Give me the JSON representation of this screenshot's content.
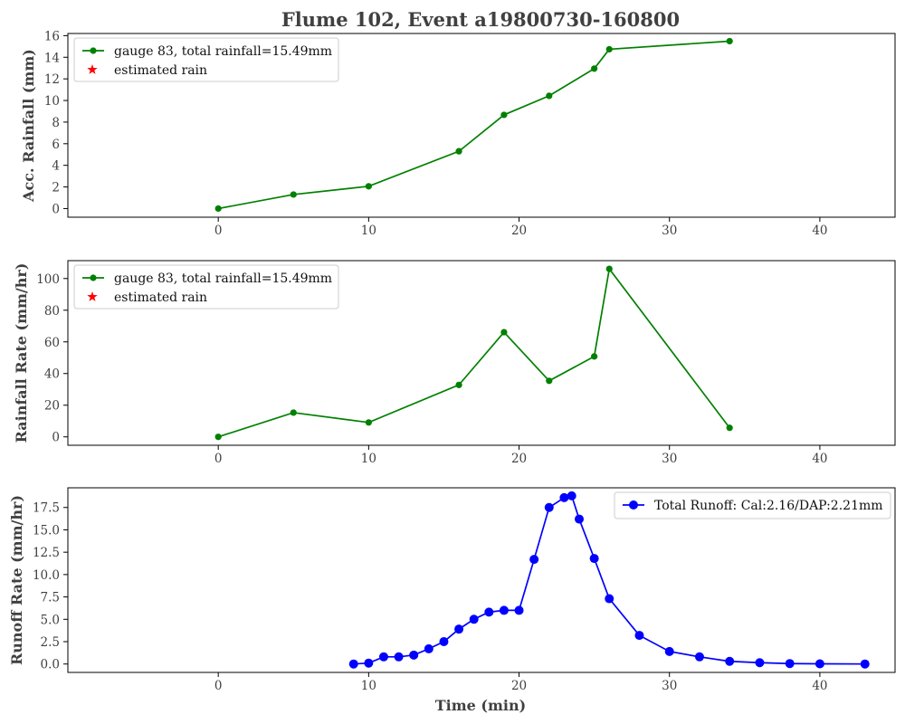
{
  "chart_data": [
    {
      "type": "line",
      "title": "Flume 102, Event a19800730-160800",
      "xlabel": "",
      "ylabel": "Acc. Rainfall (mm)",
      "xlim": [
        -10,
        45
      ],
      "ylim": [
        -0.8,
        16.2
      ],
      "xticks": [
        0,
        10,
        20,
        30,
        40
      ],
      "yticks": [
        0,
        2,
        4,
        6,
        8,
        10,
        12,
        14,
        16
      ],
      "legend_position": "upper-left",
      "series": [
        {
          "name": "gauge 83, total rainfall=15.49mm",
          "color": "#008000",
          "marker": "circle",
          "x": [
            0,
            5,
            10,
            16,
            19,
            22,
            25,
            26,
            34
          ],
          "y": [
            0,
            1.3,
            2.06,
            5.3,
            8.67,
            10.43,
            12.95,
            14.74,
            15.49
          ]
        },
        {
          "name": "estimated rain",
          "color": "#ff0000",
          "marker": "star",
          "x": [],
          "y": []
        }
      ]
    },
    {
      "type": "line",
      "title": "",
      "xlabel": "",
      "ylabel": "Rainfall Rate (mm/hr)",
      "xlim": [
        -10,
        45
      ],
      "ylim": [
        -5.3,
        111.3
      ],
      "xticks": [
        0,
        10,
        20,
        30,
        40
      ],
      "yticks": [
        0,
        20,
        40,
        60,
        80,
        100
      ],
      "legend_position": "upper-left",
      "series": [
        {
          "name": "gauge 83, total rainfall=15.49mm",
          "color": "#008000",
          "marker": "circle",
          "x": [
            0,
            5,
            10,
            16,
            19,
            22,
            25,
            26,
            34
          ],
          "y": [
            0,
            15.3,
            9.1,
            32.8,
            66.1,
            35.4,
            50.8,
            106.1,
            5.7
          ]
        },
        {
          "name": "estimated rain",
          "color": "#ff0000",
          "marker": "star",
          "x": [],
          "y": []
        }
      ]
    },
    {
      "type": "line",
      "title": "",
      "xlabel": "Time (min)",
      "ylabel": "Runoff Rate (mm/hr)",
      "xlim": [
        -10,
        45
      ],
      "ylim": [
        -0.94,
        19.7
      ],
      "xticks": [
        0,
        10,
        20,
        30,
        40
      ],
      "yticks": [
        0.0,
        2.5,
        5.0,
        7.5,
        10.0,
        12.5,
        15.0,
        17.5
      ],
      "legend_position": "upper-right",
      "series": [
        {
          "name": "Total Runoff: Cal:2.16/DAP:2.21mm",
          "color": "#0000ff",
          "marker": "circle",
          "x": [
            9,
            10,
            11,
            12,
            13,
            14,
            15,
            16,
            17,
            18,
            19,
            20,
            21,
            22,
            23,
            23.5,
            24,
            25,
            26,
            28,
            30,
            32,
            34,
            36,
            38,
            40,
            43
          ],
          "y": [
            0.0,
            0.1,
            0.8,
            0.8,
            1.0,
            1.7,
            2.5,
            3.9,
            5.0,
            5.8,
            6.0,
            6.0,
            11.7,
            17.5,
            18.6,
            18.8,
            16.2,
            11.8,
            7.3,
            3.2,
            1.4,
            0.8,
            0.3,
            0.15,
            0.05,
            0.02,
            0.0
          ]
        }
      ]
    }
  ]
}
